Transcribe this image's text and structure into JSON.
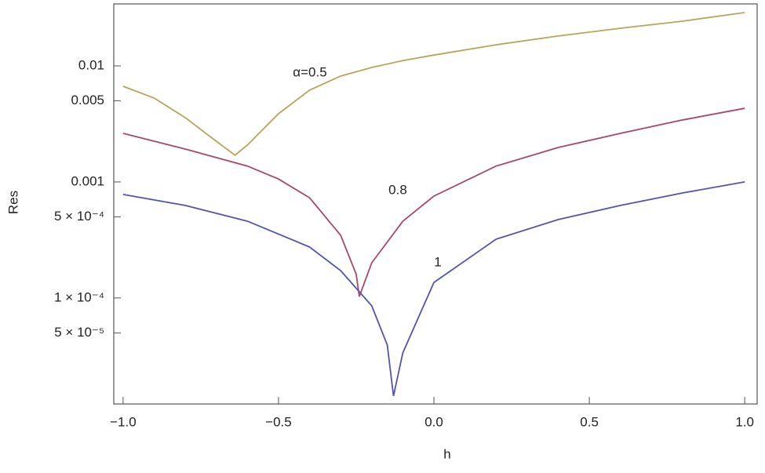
{
  "chart_data": {
    "type": "line",
    "x_label": "h",
    "y_label": "Res",
    "log_y": true,
    "xlim": [
      -1.03,
      1.04
    ],
    "ylim": [
      1.22e-05,
      0.0342
    ],
    "xticks": [
      {
        "value": -1,
        "label": "−1.0"
      },
      {
        "value": -0.5,
        "label": "−0.5"
      },
      {
        "value": 0,
        "label": "0.0"
      },
      {
        "value": 0.5,
        "label": "0.5"
      },
      {
        "value": 1,
        "label": "1.0"
      }
    ],
    "yticks": [
      0.01,
      0.005,
      0.001,
      {
        "value": 0.0005,
        "label": "5 × 10⁻⁴"
      },
      {
        "value": 0.0001,
        "label": "1 × 10⁻⁴"
      },
      {
        "value": 5e-05,
        "label": "5 × 10⁻⁵"
      }
    ],
    "annotations": [
      "α=0.5",
      "0.8",
      "1"
    ],
    "series": [
      {
        "name": "α=0.5",
        "color": "#b8a45a",
        "x": [
          -1,
          -0.9,
          -0.8,
          -0.7,
          -0.64,
          -0.6,
          -0.5,
          -0.4,
          -0.3,
          -0.2,
          -0.1,
          0,
          0.2,
          0.4,
          0.6,
          0.8,
          1
        ],
        "values": [
          0.00667,
          0.00528,
          0.00358,
          0.00224,
          0.0017,
          0.00208,
          0.00387,
          0.00618,
          0.00817,
          0.0097,
          0.0111,
          0.0124,
          0.0152,
          0.0181,
          0.0211,
          0.0243,
          0.0288
        ]
      },
      {
        "name": "0.8",
        "color": "#a8466e",
        "x": [
          -1,
          -0.8,
          -0.6,
          -0.5,
          -0.4,
          -0.3,
          -0.25,
          -0.24,
          -0.2,
          -0.1,
          0,
          0.2,
          0.4,
          0.6,
          0.8,
          1
        ],
        "values": [
          0.00262,
          0.00192,
          0.00137,
          0.00106,
          0.00073,
          0.000347,
          0.00016,
          0.000103,
          0.000201,
          0.000459,
          0.000755,
          0.00137,
          0.00198,
          0.00262,
          0.00342,
          0.00431
        ]
      },
      {
        "name": "1",
        "color": "#5353b0",
        "x": [
          -1,
          -0.8,
          -0.6,
          -0.4,
          -0.3,
          -0.2,
          -0.15,
          -0.13,
          -0.1,
          0,
          0.2,
          0.4,
          0.6,
          0.8,
          1
        ],
        "values": [
          0.00078,
          0.000627,
          0.000459,
          0.000275,
          0.000172,
          8.55e-05,
          3.93e-05,
          1.43e-05,
          3.37e-05,
          0.000136,
          0.000321,
          0.000474,
          0.000627,
          0.000803,
          0.001
        ]
      }
    ]
  }
}
